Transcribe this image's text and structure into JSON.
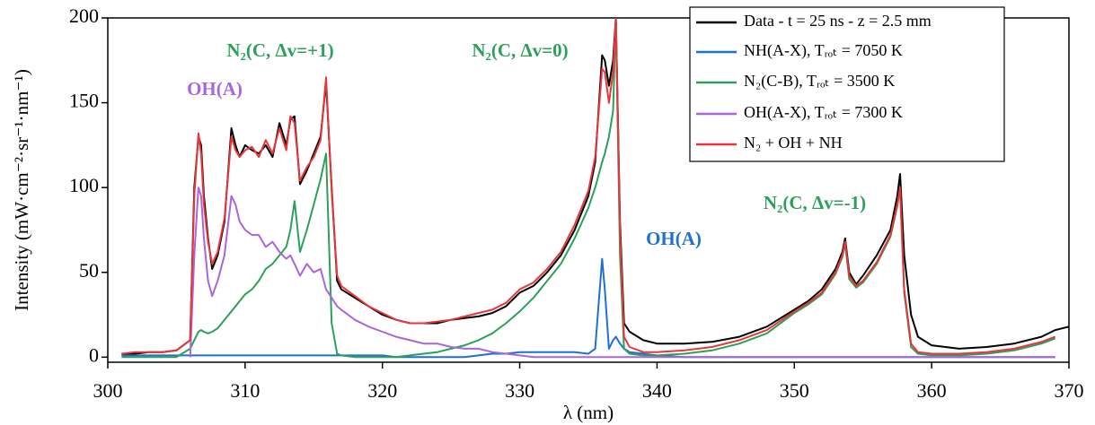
{
  "chart_data": {
    "type": "line",
    "xlabel": "λ (nm)",
    "ylabel": "Intensity (mW·cm⁻²·sr⁻¹·nm⁻¹)",
    "xlim": [
      300,
      370
    ],
    "xticks": [
      300,
      310,
      320,
      330,
      340,
      350,
      360,
      370
    ],
    "ylim": [
      -3,
      200
    ],
    "yticks": [
      0,
      50,
      100,
      150,
      200
    ],
    "legend": "upper right",
    "x": [
      301,
      302,
      303,
      304,
      305,
      306,
      306.3,
      306.6,
      306.8,
      307,
      307.3,
      307.6,
      308,
      308.5,
      309,
      309.3,
      309.6,
      310,
      310.5,
      311,
      311.5,
      312,
      312.5,
      313,
      313.3,
      313.6,
      314,
      314.5,
      315,
      315.5,
      315.9,
      316.3,
      316.7,
      317,
      318,
      319,
      320,
      321,
      322,
      323,
      324,
      325,
      326,
      327,
      328,
      329,
      330,
      331,
      332,
      333,
      334,
      335,
      335.5,
      336,
      336.2,
      336.5,
      336.8,
      337,
      337.3,
      337.6,
      338,
      339,
      340,
      342,
      344,
      346,
      348,
      350,
      351,
      352,
      353,
      353.5,
      353.7,
      354,
      354.5,
      355,
      356,
      357,
      357.5,
      357.7,
      358,
      358.5,
      359,
      360,
      362,
      364,
      366,
      368,
      369,
      370
    ],
    "series": [
      {
        "name": "Data - t = 25 ns - z = 2.5 mm",
        "color": "#000000",
        "values": [
          2,
          2,
          3,
          3,
          4,
          10,
          100,
          130,
          125,
          95,
          70,
          52,
          60,
          80,
          135,
          125,
          118,
          125,
          122,
          120,
          125,
          118,
          138,
          125,
          140,
          142,
          102,
          110,
          120,
          130,
          162,
          100,
          45,
          40,
          35,
          30,
          25,
          22,
          20,
          20,
          20,
          22,
          23,
          24,
          26,
          30,
          38,
          42,
          50,
          60,
          75,
          95,
          115,
          178,
          175,
          160,
          175,
          200,
          80,
          20,
          15,
          10,
          8,
          8,
          9,
          12,
          18,
          28,
          33,
          40,
          52,
          62,
          70,
          50,
          43,
          48,
          60,
          75,
          95,
          108,
          60,
          25,
          12,
          7,
          5,
          6,
          8,
          12,
          16,
          18
        ]
      },
      {
        "name": "NH(A-X), Tᵣₒₜ = 7050 K",
        "color": "#1f6fd6",
        "values": [
          1,
          1,
          1,
          1,
          1,
          1,
          1,
          1,
          1,
          1,
          1,
          1,
          1,
          1,
          1,
          1,
          1,
          1,
          1,
          1,
          1,
          1,
          1,
          1,
          1,
          1,
          1,
          1,
          1,
          1,
          1,
          1,
          1,
          1,
          1,
          1,
          1,
          0,
          0,
          0,
          0,
          0,
          0,
          1,
          2,
          2,
          3,
          3,
          3,
          3,
          3,
          2,
          5,
          58,
          40,
          5,
          10,
          12,
          8,
          5,
          3,
          2,
          1,
          0,
          0,
          0,
          0,
          0,
          0,
          0,
          0,
          0,
          0,
          0,
          0,
          0,
          0,
          0,
          0,
          0,
          0,
          0,
          0,
          0,
          0,
          0,
          0,
          0,
          0,
          null
        ]
      },
      {
        "name": "N₂(C-B), Tᵣₒₜ = 3500 K",
        "color": "#2ca05a",
        "values": [
          0,
          0,
          0,
          0,
          0,
          5,
          10,
          15,
          16,
          15,
          14,
          15,
          17,
          22,
          27,
          30,
          33,
          37,
          40,
          45,
          52,
          55,
          60,
          65,
          75,
          92,
          62,
          75,
          90,
          105,
          120,
          20,
          2,
          1,
          0,
          0,
          0,
          0,
          1,
          2,
          3,
          5,
          7,
          10,
          14,
          20,
          27,
          35,
          45,
          55,
          70,
          88,
          100,
          115,
          120,
          130,
          145,
          200,
          60,
          5,
          2,
          1,
          1,
          2,
          4,
          8,
          14,
          26,
          31,
          37,
          49,
          59,
          67,
          46,
          41,
          44,
          55,
          71,
          89,
          99,
          38,
          6,
          2,
          1,
          1,
          2,
          4,
          8,
          11,
          null
        ]
      },
      {
        "name": "OH(A-X), Tᵣₒₜ = 7300 K",
        "color": "#a866dc",
        "values": [
          null,
          null,
          null,
          null,
          null,
          0,
          60,
          100,
          95,
          70,
          45,
          36,
          45,
          60,
          95,
          90,
          80,
          75,
          72,
          72,
          65,
          68,
          62,
          58,
          60,
          55,
          48,
          55,
          50,
          52,
          40,
          35,
          30,
          28,
          22,
          18,
          15,
          12,
          10,
          8,
          8,
          6,
          5,
          5,
          3,
          2,
          1,
          0,
          0,
          0,
          0,
          0,
          0,
          0,
          0,
          0,
          0,
          0,
          0,
          0,
          0,
          0,
          0,
          0,
          0,
          0,
          0,
          0,
          0,
          0,
          0,
          0,
          0,
          0,
          0,
          0,
          0,
          0,
          0,
          0,
          0,
          0,
          0,
          0,
          0,
          0,
          0,
          0,
          0,
          null
        ]
      },
      {
        "name": "N₂ + OH + NH",
        "color": "#e8363a",
        "values": [
          2,
          3,
          3,
          3,
          4,
          10,
          95,
          132,
          120,
          90,
          68,
          55,
          62,
          82,
          130,
          122,
          118,
          122,
          124,
          118,
          128,
          120,
          135,
          122,
          142,
          138,
          104,
          112,
          118,
          128,
          165,
          98,
          48,
          42,
          36,
          30,
          26,
          22,
          20,
          20,
          21,
          22,
          24,
          26,
          28,
          32,
          40,
          44,
          52,
          62,
          78,
          98,
          118,
          170,
          168,
          150,
          168,
          200,
          75,
          12,
          6,
          3,
          3,
          4,
          6,
          10,
          16,
          27,
          32,
          38,
          50,
          60,
          68,
          48,
          42,
          45,
          56,
          72,
          90,
          100,
          40,
          8,
          3,
          2,
          2,
          3,
          5,
          9,
          12,
          null
        ]
      }
    ],
    "annotations": [
      {
        "text": "N₂(C, Δv=+1)",
        "color": "#2ca05a"
      },
      {
        "text": "OH(A)",
        "color": "#a866dc"
      },
      {
        "text": "N₂(C, Δv=0)",
        "color": "#2ca05a"
      },
      {
        "text": "OH(A)",
        "color": "#1f6fd6"
      },
      {
        "text": "N₂(C, Δv=-1)",
        "color": "#2ca05a"
      }
    ]
  }
}
